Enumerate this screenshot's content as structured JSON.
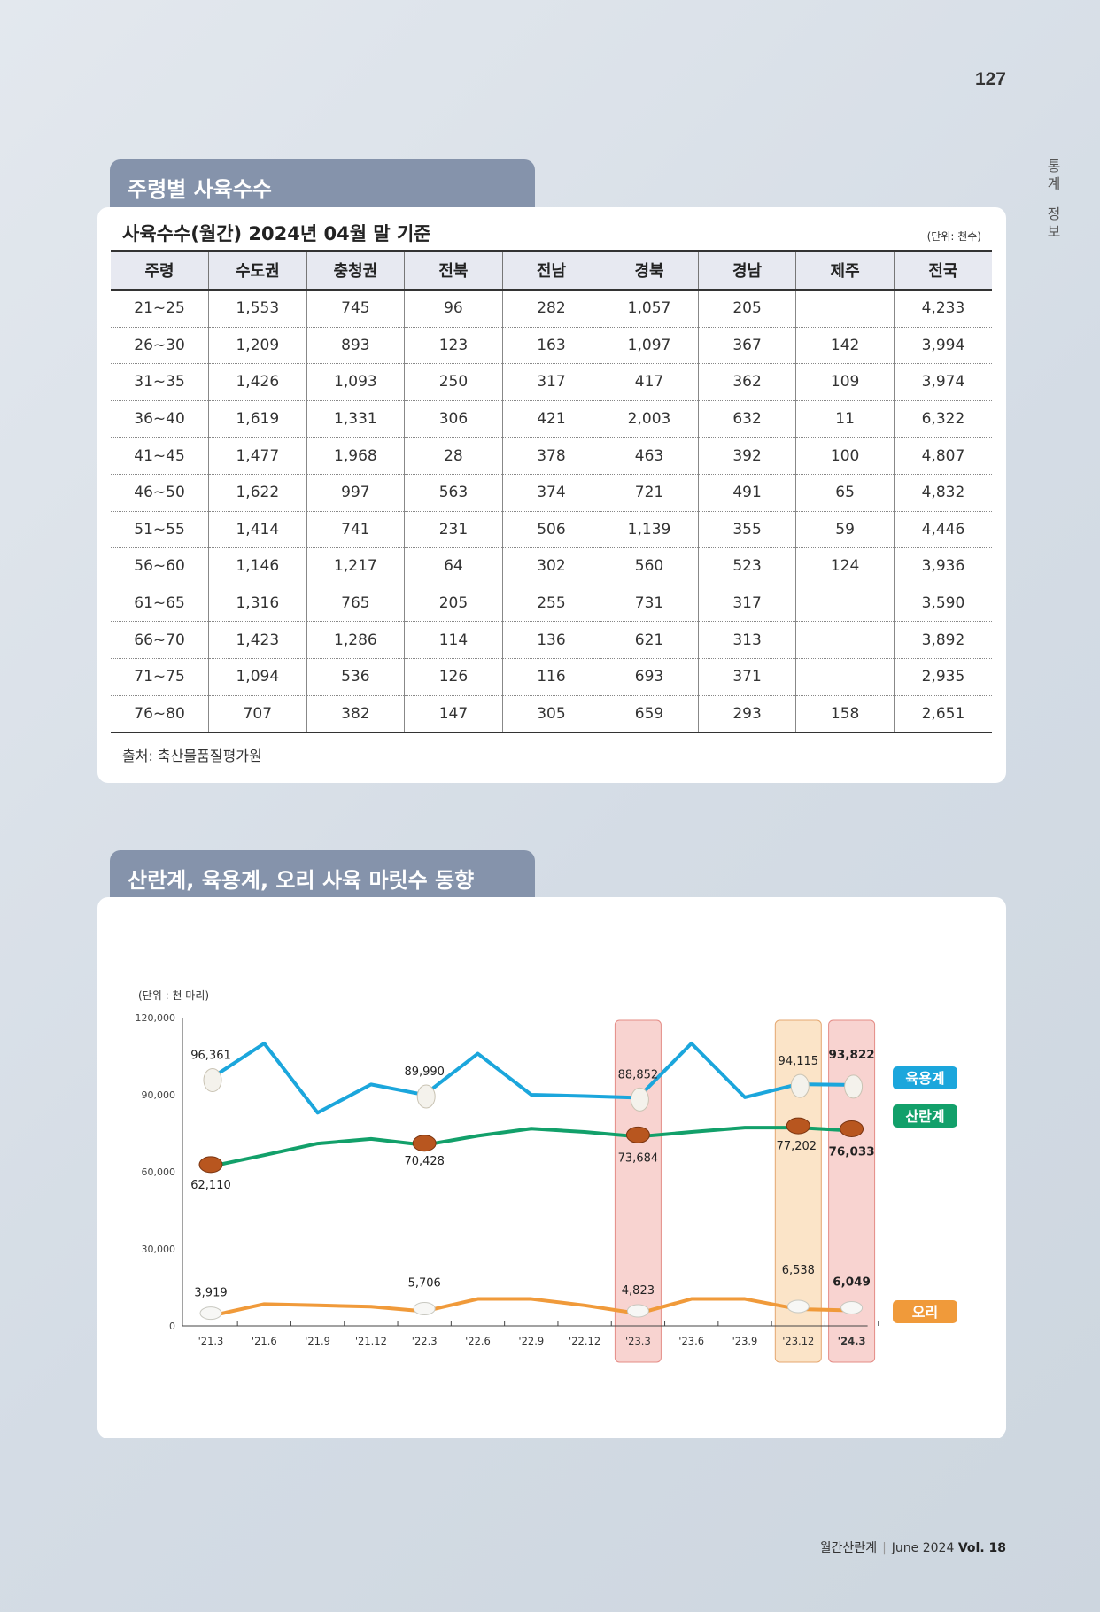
{
  "page_number": "127",
  "side_label": [
    "통",
    "계",
    "정",
    "보"
  ],
  "section1": {
    "tab": "주령별 사육수수",
    "title": "사육수수(월간) 2024년 04월 말 기준",
    "unit": "(단위: 천수)",
    "headers": [
      "주령",
      "수도권",
      "충청권",
      "전북",
      "전남",
      "경북",
      "경남",
      "제주",
      "전국"
    ],
    "rows": [
      [
        "21~25",
        "1,553",
        "745",
        "96",
        "282",
        "1,057",
        "205",
        "",
        "4,233"
      ],
      [
        "26~30",
        "1,209",
        "893",
        "123",
        "163",
        "1,097",
        "367",
        "142",
        "3,994"
      ],
      [
        "31~35",
        "1,426",
        "1,093",
        "250",
        "317",
        "417",
        "362",
        "109",
        "3,974"
      ],
      [
        "36~40",
        "1,619",
        "1,331",
        "306",
        "421",
        "2,003",
        "632",
        "11",
        "6,322"
      ],
      [
        "41~45",
        "1,477",
        "1,968",
        "28",
        "378",
        "463",
        "392",
        "100",
        "4,807"
      ],
      [
        "46~50",
        "1,622",
        "997",
        "563",
        "374",
        "721",
        "491",
        "65",
        "4,832"
      ],
      [
        "51~55",
        "1,414",
        "741",
        "231",
        "506",
        "1,139",
        "355",
        "59",
        "4,446"
      ],
      [
        "56~60",
        "1,146",
        "1,217",
        "64",
        "302",
        "560",
        "523",
        "124",
        "3,936"
      ],
      [
        "61~65",
        "1,316",
        "765",
        "205",
        "255",
        "731",
        "317",
        "",
        "3,590"
      ],
      [
        "66~70",
        "1,423",
        "1,286",
        "114",
        "136",
        "621",
        "313",
        "",
        "3,892"
      ],
      [
        "71~75",
        "1,094",
        "536",
        "126",
        "116",
        "693",
        "371",
        "",
        "2,935"
      ],
      [
        "76~80",
        "707",
        "382",
        "147",
        "305",
        "659",
        "293",
        "158",
        "2,651"
      ]
    ],
    "source": "출처: 축산물품질평가원"
  },
  "section2": {
    "tab": "산란계, 육용계, 오리 사육 마릿수 동향"
  },
  "chart_data": {
    "type": "line",
    "unit_label": "(단위 :  천 마리)",
    "x": [
      "'21.3",
      "'21.6",
      "'21.9",
      "'21.12",
      "'22.3",
      "'22.6",
      "'22.9",
      "'22.12",
      "'23.3",
      "'23.6",
      "'23.9",
      "'23.12",
      "'24.3"
    ],
    "y_ticks": [
      "0",
      "30,000",
      "60,000",
      "90,000",
      "120,000"
    ],
    "ylim": [
      0,
      120000
    ],
    "highlight_periods": [
      "'23.3",
      "'23.12",
      "'24.3"
    ],
    "series": [
      {
        "name": "육용계",
        "color": "#1ba6dc",
        "values": [
          96361,
          110000,
          83000,
          94000,
          89990,
          106000,
          90000,
          89500,
          88852,
          110000,
          89000,
          94115,
          93822
        ],
        "labels": {
          "0": "96,361",
          "4": "89,990",
          "8": "88,852",
          "11": "94,115",
          "12": "93,822"
        }
      },
      {
        "name": "산란계",
        "color": "#12a06a",
        "values": [
          62110,
          66500,
          71000,
          72800,
          70428,
          74000,
          76800,
          75500,
          73684,
          75500,
          77200,
          77202,
          76033
        ],
        "labels": {
          "0": "62,110",
          "4": "70,428",
          "8": "73,684",
          "11": "77,202",
          "12": "76,033"
        }
      },
      {
        "name": "오리",
        "color": "#f09a3a",
        "values": [
          3919,
          8500,
          8000,
          7500,
          5706,
          10500,
          10500,
          8000,
          4823,
          10500,
          10500,
          6538,
          6049
        ],
        "labels": {
          "0": "3,919",
          "4": "5,706",
          "8": "4,823",
          "11": "6,538",
          "12": "6,049"
        }
      }
    ]
  },
  "footer": {
    "magazine": "월간산란계",
    "issue": "June 2024",
    "vol": "Vol. 18"
  }
}
